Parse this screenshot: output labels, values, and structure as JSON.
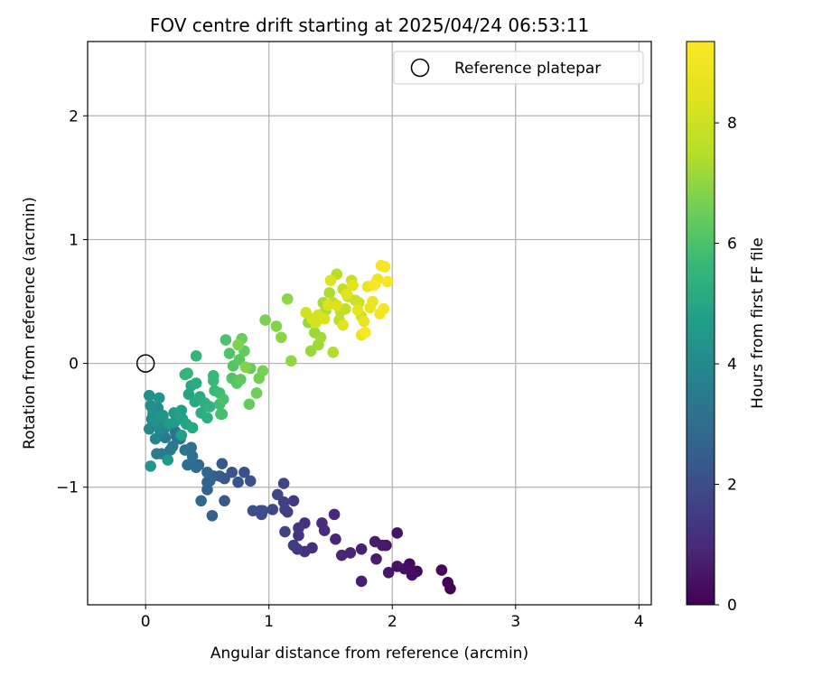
{
  "chart_data": {
    "type": "scatter",
    "title": "FOV centre drift starting at 2025/04/24 06:53:11",
    "xlabel": "Angular distance from reference (arcmin)",
    "ylabel": "Rotation from reference (arcmin)",
    "xlim": [
      -0.47,
      4.1
    ],
    "ylim": [
      -1.95,
      2.6
    ],
    "xticks": [
      0,
      1,
      2,
      3,
      4
    ],
    "yticks": [
      -1,
      0,
      1,
      2
    ],
    "xtick_labels": [
      "0",
      "1",
      "2",
      "3",
      "4"
    ],
    "ytick_labels": [
      "−1",
      "0",
      "1",
      "2"
    ],
    "grid": true,
    "legend": {
      "position": "top-right",
      "entries": [
        "Reference platepar"
      ]
    },
    "reference_point": {
      "x": 0,
      "y": 0,
      "label": "Reference platepar"
    },
    "colorbar": {
      "label": "Hours from first FF file",
      "range": [
        0,
        9.35
      ],
      "ticks": [
        0,
        2,
        4,
        6,
        8
      ],
      "tick_labels": [
        "0",
        "2",
        "4",
        "6",
        "8"
      ],
      "colormap": "viridis"
    },
    "points": [
      [
        2.47,
        -1.82,
        0.05
      ],
      [
        2.45,
        -1.77,
        0.1
      ],
      [
        2.4,
        -1.67,
        0.15
      ],
      [
        2.2,
        -1.68,
        0.2
      ],
      [
        2.14,
        -1.62,
        0.25
      ],
      [
        2.16,
        -1.71,
        0.3
      ],
      [
        2.1,
        -1.66,
        0.35
      ],
      [
        2.04,
        -1.64,
        0.4
      ],
      [
        2.04,
        -1.37,
        0.45
      ],
      [
        1.97,
        -1.69,
        0.5
      ],
      [
        1.95,
        -1.47,
        0.55
      ],
      [
        1.92,
        -1.47,
        0.6
      ],
      [
        1.86,
        -1.44,
        0.65
      ],
      [
        1.87,
        -1.58,
        0.7
      ],
      [
        1.75,
        -1.76,
        0.75
      ],
      [
        1.75,
        -1.5,
        0.8
      ],
      [
        1.66,
        -1.53,
        0.85
      ],
      [
        1.59,
        -1.55,
        0.9
      ],
      [
        1.54,
        -1.42,
        0.95
      ],
      [
        1.53,
        -1.22,
        1.0
      ],
      [
        1.45,
        -1.35,
        1.05
      ],
      [
        1.43,
        -1.29,
        1.1
      ],
      [
        1.35,
        -1.49,
        1.15
      ],
      [
        1.29,
        -1.29,
        1.2
      ],
      [
        1.29,
        -1.52,
        1.25
      ],
      [
        1.24,
        -1.39,
        1.3
      ],
      [
        1.24,
        -1.33,
        1.35
      ],
      [
        1.23,
        -1.5,
        1.4
      ],
      [
        1.2,
        -1.11,
        1.45
      ],
      [
        1.2,
        -1.47,
        1.5
      ],
      [
        1.15,
        -1.2,
        1.55
      ],
      [
        1.13,
        -1.18,
        1.6
      ],
      [
        1.12,
        -1.12,
        1.65
      ],
      [
        1.13,
        -1.36,
        1.7
      ],
      [
        1.12,
        -0.97,
        1.75
      ],
      [
        1.07,
        -1.06,
        1.8
      ],
      [
        1.03,
        -1.18,
        1.85
      ],
      [
        0.95,
        -1.19,
        1.9
      ],
      [
        0.94,
        -1.22,
        1.95
      ],
      [
        0.93,
        -1.19,
        2.0
      ],
      [
        0.87,
        -1.19,
        2.05
      ],
      [
        0.85,
        -0.95,
        2.1
      ],
      [
        0.8,
        -0.88,
        2.15
      ],
      [
        0.75,
        -0.96,
        2.2
      ],
      [
        0.7,
        -0.88,
        2.25
      ],
      [
        0.64,
        -0.93,
        2.3
      ],
      [
        0.64,
        -1.11,
        2.35
      ],
      [
        0.6,
        -0.91,
        2.4
      ],
      [
        0.62,
        -0.81,
        2.45
      ],
      [
        0.55,
        -0.91,
        2.5
      ],
      [
        0.54,
        -1.23,
        2.55
      ],
      [
        0.52,
        -0.95,
        2.6
      ],
      [
        0.5,
        -1.02,
        2.65
      ],
      [
        0.5,
        -0.96,
        2.7
      ],
      [
        0.5,
        -0.88,
        2.75
      ],
      [
        0.45,
        -1.11,
        2.8
      ],
      [
        0.43,
        -0.82,
        2.85
      ],
      [
        0.37,
        -0.81,
        2.9
      ],
      [
        0.41,
        -0.84,
        2.95
      ],
      [
        0.34,
        -0.82,
        3.0
      ],
      [
        0.38,
        -0.75,
        3.05
      ],
      [
        0.37,
        -0.68,
        3.1
      ],
      [
        0.32,
        -0.7,
        3.15
      ],
      [
        0.28,
        -0.61,
        3.2
      ],
      [
        0.25,
        -0.59,
        3.25
      ],
      [
        0.24,
        -0.55,
        3.3
      ],
      [
        0.22,
        -0.67,
        3.35
      ],
      [
        0.2,
        -0.7,
        3.4
      ],
      [
        0.16,
        -0.6,
        3.45
      ],
      [
        0.13,
        -0.73,
        3.5
      ],
      [
        0.09,
        -0.73,
        3.55
      ],
      [
        0.06,
        -0.49,
        3.6
      ],
      [
        0.11,
        -0.52,
        3.65
      ],
      [
        0.14,
        -0.43,
        3.7
      ],
      [
        0.15,
        -0.53,
        3.75
      ],
      [
        0.12,
        -0.55,
        3.8
      ],
      [
        0.08,
        -0.61,
        3.85
      ],
      [
        0.05,
        -0.45,
        3.9
      ],
      [
        0.03,
        -0.53,
        3.95
      ],
      [
        0.06,
        -0.41,
        4.0
      ],
      [
        0.1,
        -0.36,
        4.05
      ],
      [
        0.1,
        -0.48,
        4.1
      ],
      [
        0.04,
        -0.34,
        4.15
      ],
      [
        0.06,
        -0.38,
        4.2
      ],
      [
        0.03,
        -0.26,
        4.25
      ],
      [
        0.08,
        -0.46,
        4.3
      ],
      [
        0.11,
        -0.28,
        4.35
      ],
      [
        0.04,
        -0.83,
        4.4
      ],
      [
        0.14,
        -0.42,
        4.45
      ],
      [
        0.18,
        -0.78,
        4.5
      ],
      [
        0.19,
        -0.49,
        4.55
      ],
      [
        0.23,
        -0.4,
        4.6
      ],
      [
        0.24,
        -0.47,
        4.65
      ],
      [
        0.27,
        -0.42,
        4.7
      ],
      [
        0.29,
        -0.38,
        4.75
      ],
      [
        0.29,
        -0.58,
        4.8
      ],
      [
        0.3,
        -0.45,
        4.85
      ],
      [
        0.33,
        -0.49,
        4.9
      ],
      [
        0.35,
        -0.25,
        4.95
      ],
      [
        0.37,
        -0.18,
        5.0
      ],
      [
        0.38,
        -0.52,
        5.05
      ],
      [
        0.4,
        -0.31,
        5.1
      ],
      [
        0.41,
        -0.16,
        5.15
      ],
      [
        0.44,
        -0.27,
        5.2
      ],
      [
        0.45,
        -0.4,
        5.25
      ],
      [
        0.48,
        -0.32,
        5.3
      ],
      [
        0.5,
        -0.44,
        5.35
      ],
      [
        0.52,
        -0.35,
        5.4
      ],
      [
        0.34,
        -0.08,
        5.45
      ],
      [
        0.32,
        -0.09,
        5.5
      ],
      [
        0.41,
        0.06,
        5.55
      ],
      [
        0.55,
        -0.1,
        5.6
      ],
      [
        0.55,
        -0.14,
        5.65
      ],
      [
        0.56,
        -0.22,
        5.7
      ],
      [
        0.6,
        -0.24,
        5.75
      ],
      [
        0.6,
        -0.33,
        5.8
      ],
      [
        0.61,
        -0.41,
        5.85
      ],
      [
        0.62,
        -0.41,
        5.9
      ],
      [
        0.63,
        -0.29,
        5.95
      ],
      [
        0.65,
        0.19,
        6.0
      ],
      [
        0.68,
        0.08,
        6.05
      ],
      [
        0.7,
        -0.12,
        6.1
      ],
      [
        0.71,
        -0.02,
        6.15
      ],
      [
        0.74,
        -0.16,
        6.2
      ],
      [
        0.76,
        0.03,
        6.25
      ],
      [
        0.77,
        -0.13,
        6.3
      ],
      [
        0.8,
        0.1,
        6.35
      ],
      [
        0.84,
        -0.33,
        6.4
      ],
      [
        0.85,
        -0.04,
        6.45
      ],
      [
        0.78,
        0.2,
        6.5
      ],
      [
        0.9,
        -0.24,
        6.55
      ],
      [
        0.92,
        -0.12,
        6.6
      ],
      [
        0.95,
        -0.06,
        6.65
      ],
      [
        0.97,
        0.35,
        6.7
      ],
      [
        0.75,
        0.15,
        6.75
      ],
      [
        0.81,
        -0.03,
        6.8
      ],
      [
        1.06,
        0.3,
        6.85
      ],
      [
        1.1,
        0.21,
        6.9
      ],
      [
        1.15,
        0.52,
        6.95
      ],
      [
        1.18,
        0.02,
        7.0
      ],
      [
        1.32,
        0.33,
        7.05
      ],
      [
        1.34,
        0.1,
        7.1
      ],
      [
        1.37,
        0.25,
        7.15
      ],
      [
        1.4,
        0.15,
        7.2
      ],
      [
        1.42,
        0.21,
        7.25
      ],
      [
        1.44,
        0.49,
        7.3
      ],
      [
        1.46,
        0.43,
        7.35
      ],
      [
        1.49,
        0.57,
        7.4
      ],
      [
        1.52,
        0.09,
        7.45
      ],
      [
        1.52,
        0.49,
        7.5
      ],
      [
        1.55,
        0.72,
        7.55
      ],
      [
        1.57,
        0.35,
        7.6
      ],
      [
        1.58,
        0.42,
        7.65
      ],
      [
        1.6,
        0.6,
        7.7
      ],
      [
        1.62,
        0.44,
        7.75
      ],
      [
        1.64,
        0.54,
        7.8
      ],
      [
        1.67,
        0.67,
        7.85
      ],
      [
        1.7,
        0.51,
        7.9
      ],
      [
        1.73,
        0.49,
        7.95
      ],
      [
        1.75,
        0.38,
        8.0
      ],
      [
        1.3,
        0.41,
        8.05
      ],
      [
        1.35,
        0.36,
        8.1
      ],
      [
        1.38,
        0.33,
        8.15
      ],
      [
        1.4,
        0.39,
        8.2
      ],
      [
        1.45,
        0.36,
        8.25
      ],
      [
        1.48,
        0.47,
        8.3
      ],
      [
        1.5,
        0.67,
        8.35
      ],
      [
        1.55,
        0.47,
        8.4
      ],
      [
        1.6,
        0.31,
        8.45
      ],
      [
        1.63,
        0.56,
        8.5
      ],
      [
        1.68,
        0.63,
        8.55
      ],
      [
        1.72,
        0.43,
        8.6
      ],
      [
        1.75,
        0.23,
        8.65
      ],
      [
        1.77,
        0.34,
        8.7
      ],
      [
        1.8,
        0.62,
        8.75
      ],
      [
        1.82,
        0.45,
        8.8
      ],
      [
        1.84,
        0.5,
        8.85
      ],
      [
        1.86,
        0.64,
        8.9
      ],
      [
        1.88,
        0.68,
        8.95
      ],
      [
        1.9,
        0.4,
        9.0
      ],
      [
        1.91,
        0.79,
        9.05
      ],
      [
        1.93,
        0.44,
        9.1
      ],
      [
        1.94,
        0.78,
        9.15
      ],
      [
        1.96,
        0.66,
        9.2
      ],
      [
        1.78,
        0.25,
        9.25
      ],
      [
        1.85,
        0.63,
        9.3
      ]
    ]
  }
}
